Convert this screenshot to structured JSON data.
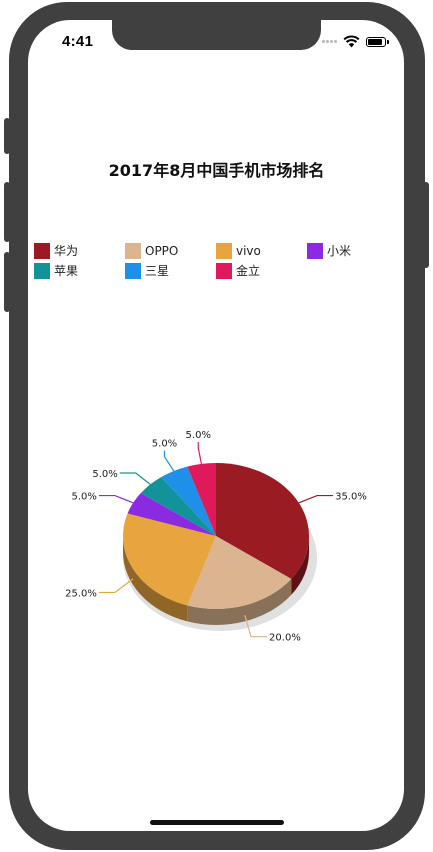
{
  "status_bar": {
    "time": "4:41"
  },
  "chart_data": {
    "type": "pie",
    "title": "2017年8月中国手机市场排名",
    "legend_position": "top",
    "slices": [
      {
        "label": "华为",
        "value": 35.0,
        "value_label": "35.0%",
        "color": "#9a1b22"
      },
      {
        "label": "OPPO",
        "value": 20.0,
        "value_label": "20.0%",
        "color": "#dcb48f"
      },
      {
        "label": "vivo",
        "value": 25.0,
        "value_label": "25.0%",
        "color": "#e8a53f"
      },
      {
        "label": "小米",
        "value": 5.0,
        "value_label": "5.0%",
        "color": "#8a2be2"
      },
      {
        "label": "苹果",
        "value": 5.0,
        "value_label": "5.0%",
        "color": "#12939a"
      },
      {
        "label": "三星",
        "value": 5.0,
        "value_label": "5.0%",
        "color": "#1e90e8"
      },
      {
        "label": "金立",
        "value": 5.0,
        "value_label": "5.0%",
        "color": "#e0195d"
      }
    ]
  }
}
